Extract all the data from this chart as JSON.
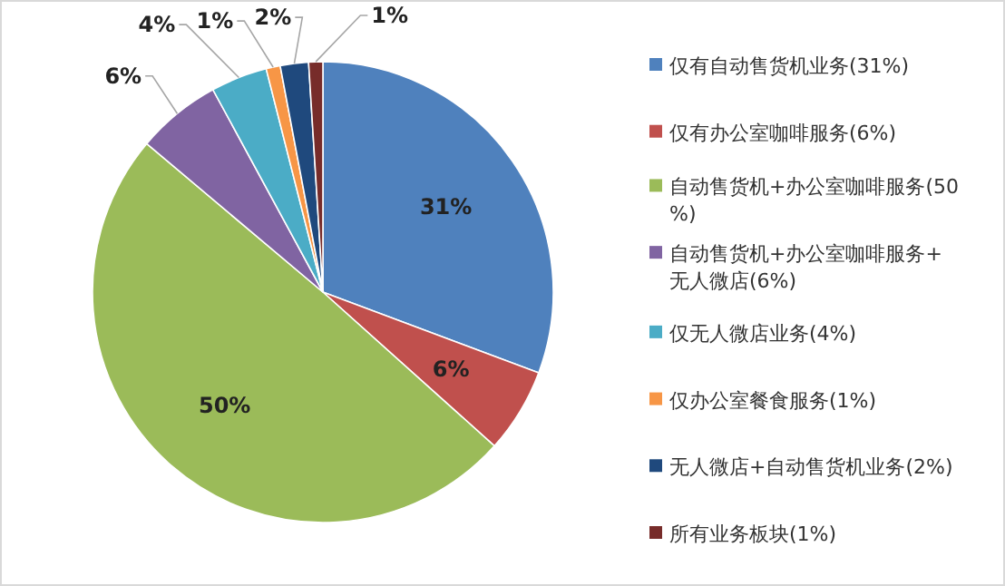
{
  "chart_data": {
    "type": "pie",
    "categories": [
      "仅有自动售货机业务(31%)",
      "仅有办公室咖啡服务(6%)",
      "自动售货机+办公室咖啡服务(50%)",
      "自动售货机+办公室咖啡服务+无人微店(6%)",
      "仅无人微店业务(4%)",
      "仅办公室餐食服务(1%)",
      "无人微店+自动售货机业务(2%)",
      "所有业务板块(1%)"
    ],
    "values": [
      31,
      6,
      50,
      6,
      4,
      1,
      2,
      1
    ],
    "value_labels": [
      "31%",
      "6%",
      "50%",
      "6%",
      "4%",
      "1%",
      "2%",
      "1%"
    ],
    "colors": [
      "#4f81bd",
      "#c0504d",
      "#9bbb59",
      "#8064a2",
      "#4bacc6",
      "#f79646",
      "#1f497d",
      "#772c2a"
    ],
    "legend": "right"
  }
}
